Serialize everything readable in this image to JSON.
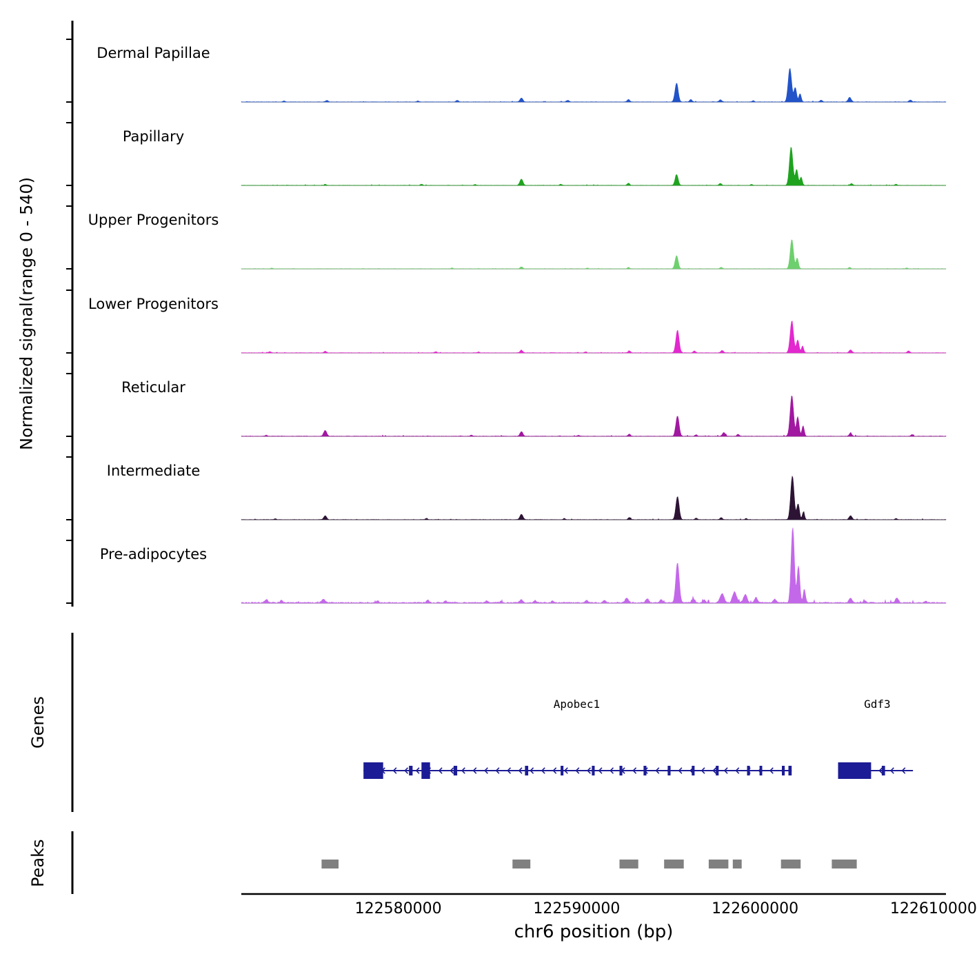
{
  "figure": {
    "y_axis_label_line1": "Normalized signal",
    "y_axis_label_line2": "(range 0 - 540)",
    "x_axis_title": "chr6 position (bp)",
    "genes_section_label": "Genes",
    "peaks_section_label": "Peaks"
  },
  "chart_data": {
    "type": "area",
    "region": {
      "chrom": "chr6",
      "start": 122571200,
      "end": 122610700
    },
    "signal_range": [
      0,
      540
    ],
    "x_ticks": [
      {
        "bp": 122580000,
        "label": "122580000"
      },
      {
        "bp": 122590000,
        "label": "122590000"
      },
      {
        "bp": 122600000,
        "label": "122600000"
      },
      {
        "bp": 122610000,
        "label": "122610000"
      }
    ],
    "tracks": [
      {
        "name": "Dermal Papillae",
        "color": "#2253c8",
        "noise": 6,
        "bumps": [
          [
            122595600,
            125,
            90
          ],
          [
            122601950,
            225,
            95
          ],
          [
            122602250,
            95,
            75
          ],
          [
            122602520,
            55,
            65
          ],
          [
            122586900,
            26,
            80
          ],
          [
            122592900,
            16,
            75
          ],
          [
            122598050,
            14,
            75
          ],
          [
            122605300,
            30,
            85
          ],
          [
            122589500,
            11,
            65
          ],
          [
            122583300,
            11,
            65
          ],
          [
            122576000,
            10,
            65
          ],
          [
            122608700,
            13,
            70
          ],
          [
            122581100,
            7,
            60
          ],
          [
            122573600,
            7,
            60
          ],
          [
            122603700,
            12,
            65
          ],
          [
            122596400,
            16,
            70
          ],
          [
            122599900,
            8,
            60
          ]
        ]
      },
      {
        "name": "Papillary",
        "color": "#1fa31f",
        "noise": 5,
        "bumps": [
          [
            122595600,
            72,
            85
          ],
          [
            122602020,
            255,
            95
          ],
          [
            122602330,
            105,
            75
          ],
          [
            122602580,
            55,
            65
          ],
          [
            122586900,
            42,
            85
          ],
          [
            122592900,
            14,
            70
          ],
          [
            122598050,
            13,
            70
          ],
          [
            122605400,
            12,
            70
          ],
          [
            122589100,
            8,
            60
          ],
          [
            122581300,
            8,
            60
          ],
          [
            122607900,
            8,
            60
          ],
          [
            122575900,
            7,
            60
          ],
          [
            122584300,
            6,
            55
          ],
          [
            122599800,
            7,
            55
          ]
        ]
      },
      {
        "name": "Upper Progenitors",
        "color": "#6ecf6e",
        "noise": 4,
        "bumps": [
          [
            122595600,
            88,
            85
          ],
          [
            122602060,
            195,
            90
          ],
          [
            122602360,
            70,
            70
          ],
          [
            122586900,
            13,
            70
          ],
          [
            122592900,
            9,
            60
          ],
          [
            122598100,
            10,
            65
          ],
          [
            122605300,
            9,
            60
          ],
          [
            122583000,
            6,
            55
          ],
          [
            122608500,
            6,
            55
          ],
          [
            122572900,
            5,
            55
          ],
          [
            122590600,
            5,
            55
          ]
        ]
      },
      {
        "name": "Lower Progenitors",
        "color": "#e228ce",
        "noise": 6,
        "bumps": [
          [
            122595650,
            150,
            90
          ],
          [
            122602060,
            210,
            95
          ],
          [
            122602390,
            85,
            75
          ],
          [
            122602660,
            45,
            60
          ],
          [
            122586900,
            16,
            75
          ],
          [
            122592950,
            13,
            70
          ],
          [
            122598150,
            16,
            75
          ],
          [
            122605350,
            20,
            75
          ],
          [
            122575900,
            11,
            65
          ],
          [
            122608600,
            13,
            70
          ],
          [
            122582100,
            8,
            60
          ],
          [
            122590500,
            7,
            55
          ],
          [
            122572800,
            8,
            60
          ],
          [
            122596600,
            12,
            65
          ],
          [
            122584500,
            6,
            55
          ]
        ]
      },
      {
        "name": "Reticular",
        "color": "#a118a1",
        "noise": 7,
        "bumps": [
          [
            122595650,
            135,
            90
          ],
          [
            122602060,
            270,
            95
          ],
          [
            122602390,
            128,
            75
          ],
          [
            122602690,
            68,
            65
          ],
          [
            122575900,
            38,
            85
          ],
          [
            122586900,
            30,
            80
          ],
          [
            122592950,
            14,
            70
          ],
          [
            122598250,
            24,
            80
          ],
          [
            122599050,
            13,
            65
          ],
          [
            122605350,
            20,
            75
          ],
          [
            122608800,
            11,
            60
          ],
          [
            122584100,
            8,
            55
          ],
          [
            122572600,
            7,
            55
          ],
          [
            122590100,
            7,
            55
          ],
          [
            122596700,
            10,
            60
          ]
        ]
      },
      {
        "name": "Intermediate",
        "color": "#2d1435",
        "noise": 6,
        "bumps": [
          [
            122595650,
            155,
            90
          ],
          [
            122602090,
            290,
            95
          ],
          [
            122602410,
            105,
            75
          ],
          [
            122602710,
            52,
            60
          ],
          [
            122575900,
            26,
            80
          ],
          [
            122586900,
            36,
            85
          ],
          [
            122592950,
            14,
            70
          ],
          [
            122598100,
            13,
            70
          ],
          [
            122605350,
            26,
            80
          ],
          [
            122589300,
            8,
            55
          ],
          [
            122607900,
            8,
            55
          ],
          [
            122581600,
            7,
            55
          ],
          [
            122573100,
            7,
            55
          ],
          [
            122599500,
            8,
            55
          ],
          [
            122596700,
            10,
            60
          ]
        ]
      },
      {
        "name": "Pre-adipocytes",
        "color": "#c468ea",
        "noise": 20,
        "bumps": [
          [
            122595650,
            268,
            95
          ],
          [
            122602110,
            500,
            90
          ],
          [
            122602430,
            245,
            75
          ],
          [
            122602760,
            88,
            65
          ],
          [
            122598150,
            60,
            110
          ],
          [
            122598850,
            72,
            110
          ],
          [
            122599450,
            55,
            100
          ],
          [
            122600050,
            34,
            90
          ],
          [
            122592800,
            30,
            90
          ],
          [
            122593950,
            26,
            85
          ],
          [
            122594750,
            20,
            80
          ],
          [
            122586900,
            22,
            80
          ],
          [
            122587650,
            14,
            70
          ],
          [
            122575800,
            26,
            85
          ],
          [
            122572600,
            22,
            80
          ],
          [
            122573450,
            15,
            70
          ],
          [
            122581650,
            18,
            75
          ],
          [
            122582650,
            14,
            70
          ],
          [
            122584950,
            14,
            70
          ],
          [
            122585750,
            10,
            65
          ],
          [
            122590550,
            14,
            70
          ],
          [
            122591550,
            16,
            70
          ],
          [
            122596550,
            25,
            80
          ],
          [
            122597150,
            20,
            75
          ],
          [
            122605350,
            28,
            85
          ],
          [
            122606150,
            15,
            70
          ],
          [
            122607950,
            33,
            85
          ],
          [
            122609550,
            12,
            65
          ],
          [
            122578850,
            12,
            65
          ],
          [
            122588650,
            12,
            65
          ],
          [
            122601100,
            25,
            80
          ]
        ]
      }
    ],
    "genes": [
      {
        "name": "Apobec1",
        "strand": "-",
        "start": 122578050,
        "end": 122602050,
        "label_bp": 122590000,
        "exons_tall": [
          [
            122578050,
            122579150
          ],
          [
            122581300,
            122581780
          ]
        ],
        "exons_short": [
          [
            122580600,
            122580800
          ],
          [
            122583100,
            122583300
          ],
          [
            122587100,
            122587280
          ],
          [
            122589100,
            122589260
          ],
          [
            122590850,
            122591010
          ],
          [
            122592400,
            122592560
          ],
          [
            122593750,
            122593910
          ],
          [
            122595100,
            122595260
          ],
          [
            122596450,
            122596610
          ],
          [
            122597800,
            122597960
          ],
          [
            122599550,
            122599710
          ],
          [
            122600250,
            122600400
          ],
          [
            122601500,
            122601660
          ],
          [
            122601870,
            122602050
          ]
        ]
      },
      {
        "name": "Gdf3",
        "strand": "-",
        "start": 122604650,
        "end": 122608850,
        "label_bp": 122606850,
        "exons_tall": [
          [
            122604650,
            122606500
          ]
        ],
        "exons_short": [
          [
            122607100,
            122607280
          ]
        ]
      }
    ],
    "peak_regions": [
      [
        122575700,
        122576650
      ],
      [
        122586400,
        122587400
      ],
      [
        122592400,
        122593450
      ],
      [
        122594900,
        122596000
      ],
      [
        122597400,
        122598500
      ],
      [
        122598750,
        122599250
      ],
      [
        122601450,
        122602550
      ],
      [
        122604300,
        122605700
      ]
    ],
    "gene_color": "#1c1c96",
    "peak_color": "#808080",
    "axis_color": "#000000",
    "baseline_color": "#4d4d4d"
  }
}
